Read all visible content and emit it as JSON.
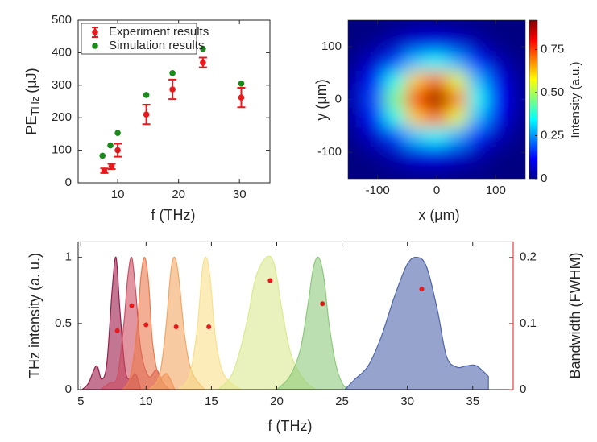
{
  "chart_data": [
    {
      "type": "errorbar-scatter",
      "xlabel": "f (THz)",
      "ylabel": "PE",
      "ylabel_sub": "THz",
      "ylabel_unit": "(μJ)",
      "xlim": [
        3.5,
        35
      ],
      "xticks": [
        10,
        20,
        30
      ],
      "ylim": [
        0,
        500
      ],
      "yticks": [
        0,
        100,
        200,
        300,
        400,
        500
      ],
      "legend": "upper-left",
      "series": [
        {
          "name": "Experiment results",
          "color": "#e8191c",
          "x": [
            7.8,
            9,
            10,
            14.7,
            19,
            24,
            30.3
          ],
          "values": [
            37,
            50,
            100,
            210,
            287,
            370,
            262
          ],
          "errors": [
            7,
            8,
            20,
            30,
            30,
            15,
            30
          ]
        },
        {
          "name": "Simulation results",
          "color": "#1a8a1a",
          "x": [
            7.5,
            8.8,
            10,
            14.7,
            19,
            24,
            30.3
          ],
          "values": [
            83,
            115,
            153,
            270,
            337,
            412,
            305
          ]
        }
      ]
    },
    {
      "type": "heatmap",
      "xlabel": "x (μm)",
      "ylabel": "y (μm)",
      "colorbar_label": "Intensity (a.u.)",
      "xlim": [
        -150,
        150
      ],
      "xticks": [
        -100,
        0,
        100
      ],
      "ylim": [
        -150,
        150
      ],
      "yticks": [
        -100,
        0,
        100
      ],
      "clim": [
        0,
        0.92
      ],
      "cticks": [
        0,
        0.25,
        {
          "value": 0.5,
          "label": "0.50"
        },
        0.75
      ],
      "colormap": "jet",
      "x": [
        -140,
        -105,
        -70,
        -35,
        0,
        35,
        70,
        105,
        140
      ],
      "y": [
        140,
        105,
        70,
        35,
        0,
        -35,
        -70,
        -105,
        -140
      ],
      "z": [
        [
          0,
          0,
          0.01,
          0.02,
          0.02,
          0.01,
          0.01,
          0,
          0
        ],
        [
          0,
          0.02,
          0.05,
          0.09,
          0.1,
          0.08,
          0.04,
          0.01,
          0
        ],
        [
          0.02,
          0.07,
          0.17,
          0.3,
          0.35,
          0.27,
          0.14,
          0.05,
          0.01
        ],
        [
          0.04,
          0.14,
          0.36,
          0.62,
          0.72,
          0.55,
          0.28,
          0.1,
          0.02
        ],
        [
          0.05,
          0.18,
          0.46,
          0.79,
          0.92,
          0.71,
          0.36,
          0.12,
          0.03
        ],
        [
          0.04,
          0.14,
          0.36,
          0.62,
          0.72,
          0.55,
          0.28,
          0.1,
          0.02
        ],
        [
          0.02,
          0.07,
          0.17,
          0.3,
          0.35,
          0.27,
          0.14,
          0.05,
          0.01
        ],
        [
          0,
          0.02,
          0.05,
          0.09,
          0.1,
          0.08,
          0.04,
          0.01,
          0
        ],
        [
          0,
          0,
          0.01,
          0.02,
          0.02,
          0.01,
          0.01,
          0,
          0
        ]
      ]
    },
    {
      "type": "area",
      "xlabel": "f (THz)",
      "ylabel": "THz intensity (a. u.)",
      "y2label": "Bandwidth (FWHM)",
      "y2color": "#e8191c",
      "xlim": [
        4.8,
        38.1
      ],
      "xticks": [
        5,
        10,
        15,
        20,
        25,
        30,
        35
      ],
      "ylim": [
        0,
        1.12
      ],
      "yticks": [
        0,
        0.5,
        1
      ],
      "y2lim": [
        0,
        0.224
      ],
      "y2ticks": [
        0,
        0.1,
        0.2
      ],
      "series": [
        {
          "color": "#9b1b4a",
          "x": [
            5.1,
            5.6,
            6.2,
            6.6,
            7.0,
            7.4,
            7.7,
            8.0,
            8.4,
            8.8,
            9.2,
            9.6
          ],
          "values": [
            0,
            0.05,
            0.18,
            0.08,
            0.2,
            0.75,
            1.0,
            0.6,
            0.15,
            0.08,
            0.12,
            0
          ]
        },
        {
          "color": "#cc4f62",
          "x": [
            6.5,
            7.2,
            7.8,
            8.3,
            8.6,
            8.9,
            9.2,
            9.6,
            10.2,
            10.8,
            11.3,
            11.8
          ],
          "values": [
            0,
            0.05,
            0.1,
            0.5,
            0.85,
            1.0,
            0.75,
            0.3,
            0.1,
            0.15,
            0.05,
            0
          ]
        },
        {
          "color": "#ea7a4c",
          "x": [
            8.2,
            8.8,
            9.3,
            9.6,
            9.9,
            10.2,
            10.5,
            11,
            11.6,
            12.2
          ],
          "values": [
            0,
            0.1,
            0.45,
            0.85,
            1.0,
            0.8,
            0.35,
            0.1,
            0.12,
            0
          ]
        },
        {
          "color": "#f3a664",
          "x": [
            10.2,
            11,
            11.5,
            11.9,
            12.2,
            12.5,
            12.9,
            13.3,
            13.8,
            14.5
          ],
          "values": [
            0,
            0.1,
            0.45,
            0.9,
            1.0,
            0.85,
            0.45,
            0.2,
            0.08,
            0
          ]
        },
        {
          "color": "#f8e08c",
          "x": [
            12.5,
            13.3,
            13.9,
            14.3,
            14.6,
            14.9,
            15.3,
            15.8,
            16.5,
            17.3
          ],
          "values": [
            0,
            0.1,
            0.45,
            0.9,
            1.0,
            0.85,
            0.4,
            0.15,
            0.05,
            0
          ]
        },
        {
          "color": "#dbe98f",
          "x": [
            15.5,
            16.5,
            17.2,
            17.8,
            18.4,
            19.2,
            19.8,
            20.4,
            21,
            21.6,
            22.3,
            23
          ],
          "values": [
            0,
            0.1,
            0.3,
            0.55,
            0.85,
            1.0,
            0.95,
            0.6,
            0.3,
            0.15,
            0.05,
            0
          ]
        },
        {
          "color": "#8dc97b",
          "x": [
            20,
            21,
            21.8,
            22.4,
            22.8,
            23.2,
            23.6,
            24,
            24.5,
            25,
            25.5
          ],
          "values": [
            0,
            0.1,
            0.3,
            0.65,
            0.92,
            1.0,
            0.85,
            0.5,
            0.2,
            0.05,
            0
          ]
        },
        {
          "color": "#4f66ac",
          "x": [
            25.2,
            26,
            27,
            28,
            29,
            30,
            30.8,
            31.5,
            32.3,
            33,
            33.8,
            34.5,
            35.3,
            36.2
          ],
          "values": [
            0,
            0.08,
            0.18,
            0.4,
            0.7,
            0.95,
            1.0,
            0.92,
            0.6,
            0.25,
            0.17,
            0.18,
            0.18,
            0.1
          ]
        },
        {
          "type": "scatter",
          "axis": "y2",
          "color": "#e8191c",
          "x": [
            7.8,
            8.9,
            10,
            12.3,
            14.8,
            19.5,
            23.5,
            31.1
          ],
          "values": [
            0.089,
            0.127,
            0.098,
            0.095,
            0.095,
            0.165,
            0.13,
            0.152
          ]
        }
      ]
    }
  ]
}
